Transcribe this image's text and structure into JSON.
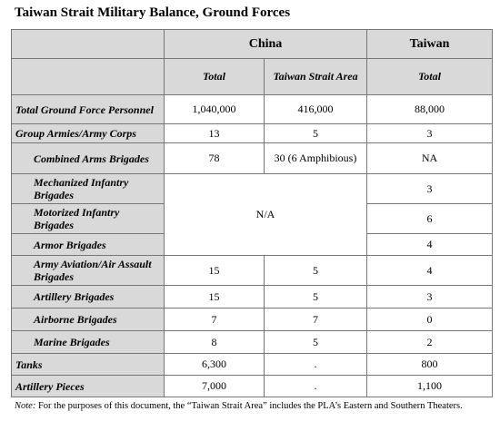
{
  "title": "Taiwan Strait Military Balance, Ground Forces",
  "headers": {
    "china": "China",
    "taiwan": "Taiwan",
    "total": "Total",
    "strait_area": "Taiwan Strait Area",
    "taiwan_total": "Total"
  },
  "rows": {
    "total_ground": {
      "label": "Total Ground Force Personnel",
      "china_total": "1,040,000",
      "strait": "416,000",
      "taiwan": "88,000"
    },
    "group_armies": {
      "label": "Group Armies/Army Corps",
      "china_total": "13",
      "strait": "5",
      "taiwan": "3"
    },
    "combined_arms": {
      "label": "Combined Arms Brigades",
      "china_total": "78",
      "strait": "30 (6 Amphibious)",
      "taiwan": "NA"
    },
    "mechanized": {
      "label": "Mechanized Infantry Brigades",
      "taiwan": "3"
    },
    "motorized": {
      "label": "Motorized Infantry Brigades",
      "taiwan": "6"
    },
    "armor": {
      "label": "Armor Brigades",
      "taiwan": "4"
    },
    "na_merged": "N/A",
    "aviation": {
      "label": "Army Aviation/Air Assault Brigades",
      "china_total": "15",
      "strait": "5",
      "taiwan": "4"
    },
    "artillery_brigades": {
      "label": "Artillery Brigades",
      "china_total": "15",
      "strait": "5",
      "taiwan": "3"
    },
    "airborne": {
      "label": "Airborne Brigades",
      "china_total": "7",
      "strait": "7",
      "taiwan": "0"
    },
    "marine": {
      "label": "Marine Brigades",
      "china_total": "8",
      "strait": "5",
      "taiwan": "2"
    },
    "tanks": {
      "label": "Tanks",
      "china_total": "6,300",
      "strait": ".",
      "taiwan": "800"
    },
    "artillery_pieces": {
      "label": "Artillery Pieces",
      "china_total": "7,000",
      "strait": ".",
      "taiwan": "1,100"
    }
  },
  "note": {
    "prefix": "Note:",
    "text": " For the purposes of this document, the “Taiwan Strait Area” includes the PLA’s Eastern and Southern Theaters."
  }
}
